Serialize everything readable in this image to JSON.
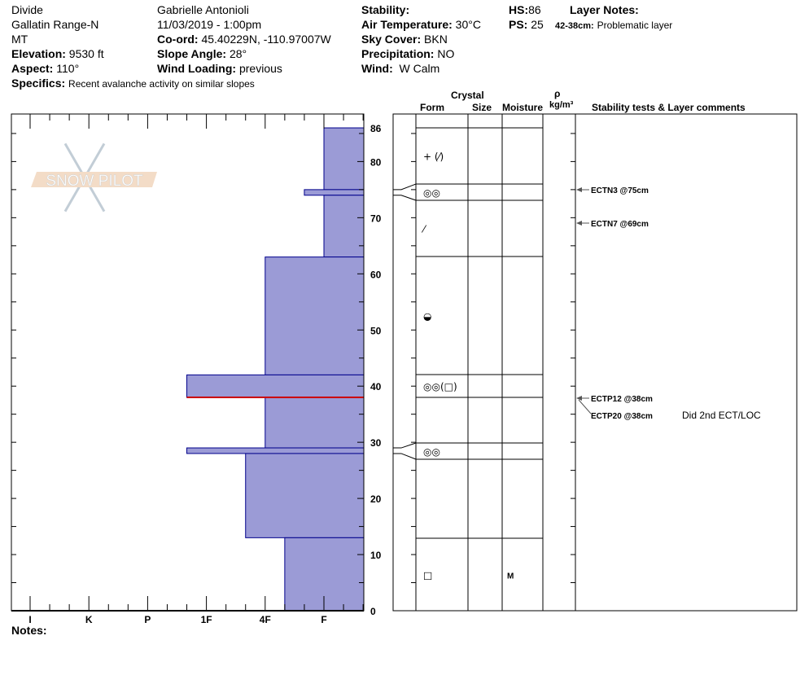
{
  "header": {
    "location": "Divide",
    "range": "Gallatin Range-N",
    "state": "MT",
    "elevation_label": "Elevation:",
    "elevation": "9530 ft",
    "aspect_label": "Aspect:",
    "aspect": "110°",
    "specifics_label": "Specifics:",
    "specifics": "Recent avalanche activity on similar slopes",
    "observer": "Gabrielle Antonioli",
    "datetime": "11/03/2019 - 1:00pm",
    "coord_label": "Co-ord:",
    "coord": "45.40229N, -110.97007W",
    "slope_label": "Slope Angle:",
    "slope": "28°",
    "wind_loading_label": "Wind Loading:",
    "wind_loading": "previous",
    "stability_label": "Stability:",
    "stability": "",
    "air_temp_label": "Air Temperature:",
    "air_temp": "30°C",
    "sky_label": "Sky Cover:",
    "sky": "BKN",
    "precip_label": "Precipitation:",
    "precip": "NO",
    "wind_label": "Wind:",
    "wind": "W Calm",
    "hs_label": "HS:",
    "hs": "86",
    "ps_label": "PS:",
    "ps": "25",
    "layer_notes_label": "Layer Notes:",
    "layer_note_range": "42-38cm:",
    "layer_note": "Problematic layer"
  },
  "table_headers": {
    "crystal": "Crystal",
    "form": "Form",
    "size": "Size",
    "moisture": "Moisture",
    "rho": "ρ",
    "density_unit": "kg/m³",
    "comments": "Stability tests & Layer comments"
  },
  "hardness_axis": [
    "I",
    "K",
    "P",
    "1F",
    "4F",
    "F"
  ],
  "depth_axis": [
    "86",
    "80",
    "70",
    "60",
    "50",
    "40",
    "30",
    "20",
    "10",
    "0"
  ],
  "notes_label": "Notes:",
  "logo_text": "SNOW PILOT",
  "colors": {
    "layer_fill": "#9b9bd6",
    "layer_stroke": "#00008b",
    "problem_line": "#cc0000"
  },
  "layers": [
    {
      "top": 86,
      "bottom": 75,
      "hardness": "F"
    },
    {
      "top": 75,
      "bottom": 74,
      "hardness": "F-"
    },
    {
      "top": 74,
      "bottom": 63,
      "hardness": "F"
    },
    {
      "top": 63,
      "bottom": 42,
      "hardness": "4F"
    },
    {
      "top": 42,
      "bottom": 38,
      "hardness": "1F-"
    },
    {
      "top": 38,
      "bottom": 29,
      "hardness": "4F"
    },
    {
      "top": 29,
      "bottom": 28,
      "hardness": "1F-"
    },
    {
      "top": 28,
      "bottom": 13,
      "hardness": "4F-"
    },
    {
      "top": 13,
      "bottom": 0,
      "hardness": "4F+"
    }
  ],
  "problem_depth": 38,
  "grain_rows": [
    {
      "form": "+ (⁄)",
      "moisture": ""
    },
    {
      "form": "◎◎",
      "moisture": ""
    },
    {
      "form": "⁄",
      "moisture": ""
    },
    {
      "form": "◒",
      "moisture": ""
    },
    {
      "form": "◎◎(□)",
      "moisture": ""
    },
    {
      "form": "",
      "moisture": ""
    },
    {
      "form": "◎◎",
      "moisture": ""
    },
    {
      "form": "",
      "moisture": ""
    },
    {
      "form": "□",
      "moisture": "M"
    }
  ],
  "tests": [
    {
      "label": "ECTN3 @75cm",
      "comment": ""
    },
    {
      "label": "ECTN7 @69cm",
      "comment": ""
    },
    {
      "label": "ECTP12 @38cm",
      "comment": ""
    },
    {
      "label": "ECTP20 @38cm",
      "comment": "Did 2nd ECT/LOC"
    }
  ]
}
